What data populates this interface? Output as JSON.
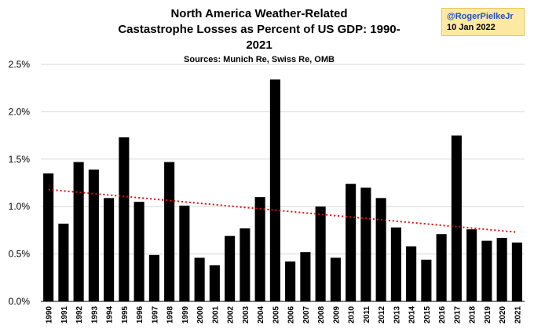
{
  "title_line1": "North America Weather-Related",
  "title_line2": "Castastrophe Losses as Percent of US GDP: 1990-2021",
  "subtitle": "Sources: Munich Re, Swiss Re, OMB",
  "credit": {
    "handle": "@RogerPielkeJr",
    "date": "10 Jan 2022"
  },
  "colors": {
    "bar": "#000000",
    "trend": "#e01010",
    "grid": "#d9d9d9"
  },
  "chart_data": {
    "type": "bar",
    "categories": [
      "1990",
      "1991",
      "1992",
      "1993",
      "1994",
      "1995",
      "1996",
      "1997",
      "1998",
      "1999",
      "2000",
      "2001",
      "2002",
      "2003",
      "2004",
      "2005",
      "2006",
      "2007",
      "2008",
      "2009",
      "2010",
      "2011",
      "2012",
      "2013",
      "2014",
      "2015",
      "2016",
      "2017",
      "2018",
      "2019",
      "2020",
      "2021"
    ],
    "values": [
      1.35,
      0.82,
      1.47,
      1.39,
      1.09,
      1.73,
      1.05,
      0.49,
      1.47,
      1.01,
      0.46,
      0.38,
      0.69,
      0.77,
      1.1,
      2.34,
      0.42,
      0.52,
      1.0,
      0.46,
      1.24,
      1.2,
      1.09,
      0.78,
      0.58,
      0.44,
      0.71,
      1.75,
      0.76,
      0.64,
      0.67,
      0.62
    ],
    "ylim": [
      0,
      2.5
    ],
    "yticks": [
      "0.0%",
      "0.5%",
      "1.0%",
      "1.5%",
      "2.0%",
      "2.5%"
    ],
    "ytick_values": [
      0,
      0.5,
      1.0,
      1.5,
      2.0,
      2.5
    ],
    "trendline": {
      "style": "dotted",
      "start": 1.18,
      "end": 0.73
    },
    "grid": true,
    "legend": false
  }
}
